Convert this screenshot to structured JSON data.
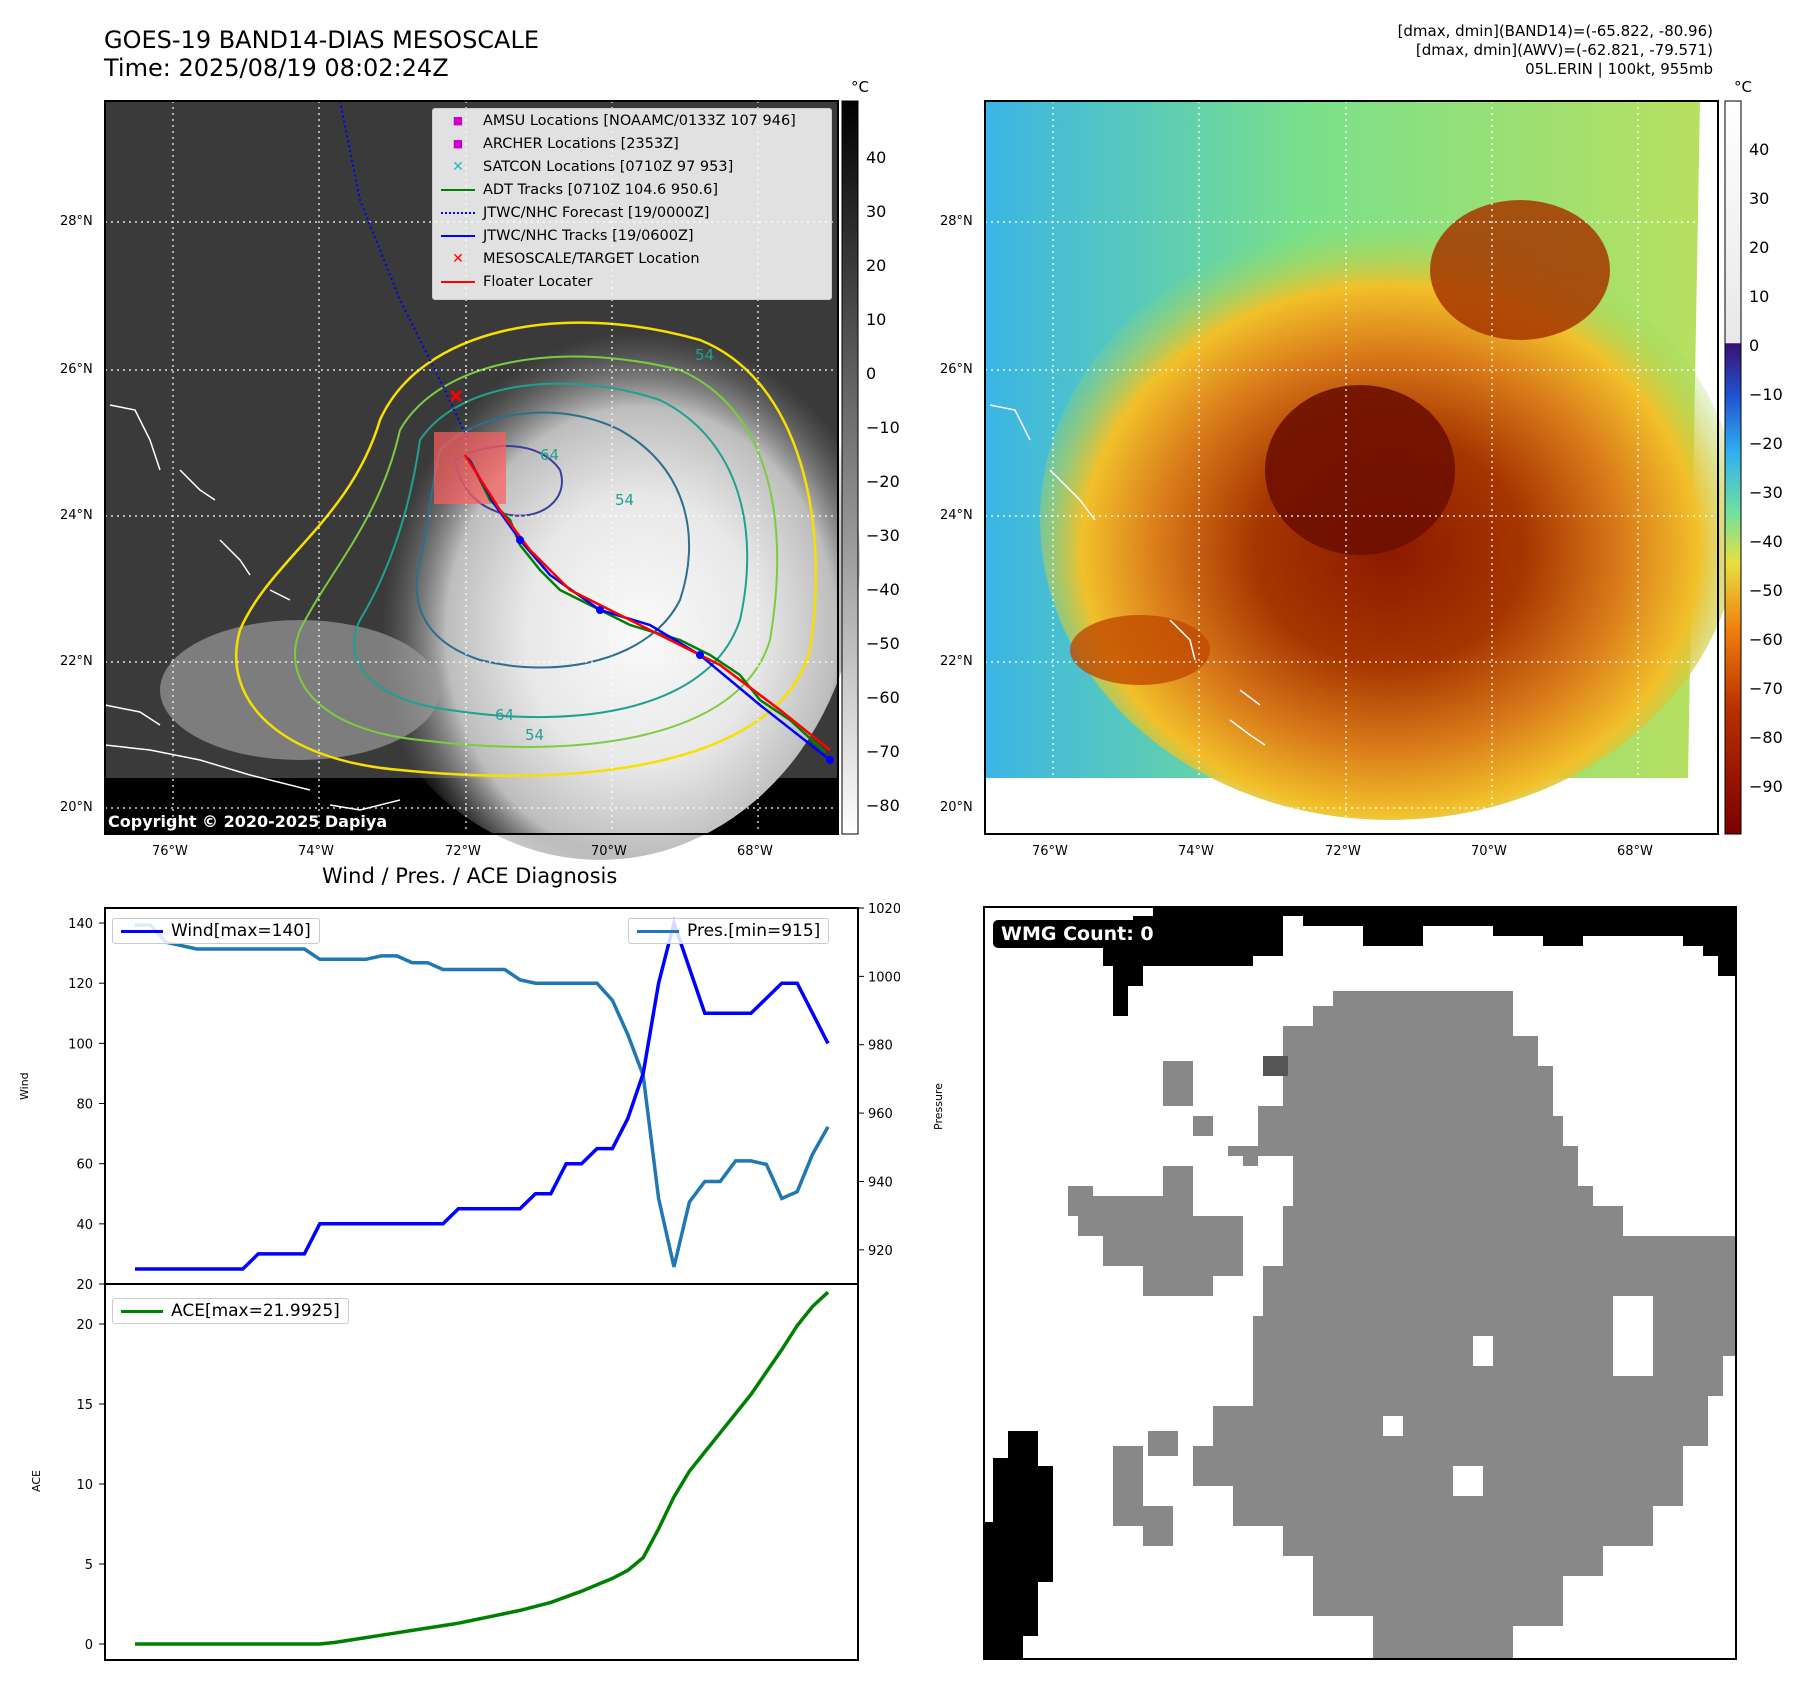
{
  "header": {
    "title_line1": "GOES-19 BAND14-DIAS MESOSCALE",
    "title_line2": "Time: 2025/08/19 08:02:24Z",
    "stats_line1": "[dmax, dmin](BAND14)=(-65.822, -80.96)",
    "stats_line2": "[dmax, dmin](AWV)=(-62.821, -79.571)",
    "stats_line3": "05L.ERIN | 100kt, 955mb"
  },
  "ir_panel": {
    "lon_labels": [
      "76°W",
      "74°W",
      "72°W",
      "70°W",
      "68°W"
    ],
    "lat_labels": [
      "28°N",
      "26°N",
      "24°N",
      "22°N",
      "20°N"
    ],
    "unit": "°C",
    "colorbar_ticks": [
      "40",
      "30",
      "20",
      "10",
      "0",
      "−10",
      "−20",
      "−30",
      "−40",
      "−50",
      "−60",
      "−70",
      "−80"
    ],
    "copyright": "Copyright © 2020-2025 Dapiya",
    "legend": [
      {
        "label": "AMSU Locations [NOAAMC/0133Z 107 946]",
        "color": "#cc00cc",
        "marker": "square"
      },
      {
        "label": "ARCHER Locations [2353Z]",
        "color": "#cc00cc",
        "marker": "square"
      },
      {
        "label": "SATCON Locations [0710Z 97 953]",
        "color": "#17becf",
        "marker": "x"
      },
      {
        "label": "ADT Tracks [0710Z 104.6 950.6]",
        "color": "#008000",
        "marker": "line"
      },
      {
        "label": "JTWC/NHC Forecast [19/0000Z]",
        "color": "#0000ff",
        "marker": "dotted"
      },
      {
        "label": "JTWC/NHC Tracks [19/0600Z]",
        "color": "#0000ff",
        "marker": "line-dot"
      },
      {
        "label": "MESOSCALE/TARGET Location",
        "color": "#ff0000",
        "marker": "x"
      },
      {
        "label": "Floater Locater",
        "color": "#ff0000",
        "marker": "line"
      }
    ],
    "contour_labels": [
      "64",
      "54",
      "54",
      "64",
      "54"
    ]
  },
  "color_panel": {
    "lon_labels": [
      "76°W",
      "74°W",
      "72°W",
      "70°W",
      "68°W"
    ],
    "lat_labels": [
      "28°N",
      "26°N",
      "24°N",
      "22°N",
      "20°N"
    ],
    "unit": "°C",
    "colorbar_ticks": [
      "40",
      "30",
      "20",
      "10",
      "0",
      "−10",
      "−20",
      "−30",
      "−40",
      "−50",
      "−60",
      "−70",
      "−80",
      "−90"
    ]
  },
  "diagnosis": {
    "title": "Wind / Pres. / ACE Diagnosis",
    "wind_ylabel": "Wind",
    "pres_ylabel": "Pressure",
    "ace_ylabel": "ACE",
    "wind_legend": "Wind[max=140]",
    "pres_legend": "Pres.[min=915]",
    "ace_legend": "ACE[max=21.9925]",
    "colors": {
      "wind": "#0000ff",
      "pres": "#1f77b4",
      "ace": "#008000"
    }
  },
  "wmg_panel": {
    "label": "WMG Count: 0"
  },
  "chart_data": [
    {
      "type": "line",
      "name": "Wind / Pressure",
      "ylim_wind": [
        20,
        145
      ],
      "ylim_pres": [
        910,
        1020
      ],
      "wind_ticks": [
        20,
        40,
        60,
        80,
        100,
        120,
        140
      ],
      "pres_ticks": [
        920,
        940,
        960,
        980,
        1000,
        1020
      ],
      "series": [
        {
          "name": "Wind[max=140]",
          "axis": "left",
          "values": [
            25,
            25,
            25,
            25,
            25,
            25,
            25,
            25,
            30,
            30,
            30,
            30,
            40,
            40,
            40,
            40,
            40,
            40,
            40,
            40,
            40,
            45,
            45,
            45,
            45,
            45,
            50,
            50,
            60,
            60,
            65,
            65,
            75,
            90,
            120,
            140,
            125,
            110,
            110,
            110,
            110,
            115,
            120,
            120,
            110,
            100
          ]
        },
        {
          "name": "Pres.[min=915]",
          "axis": "right",
          "values": [
            1015,
            1015,
            1010,
            1009,
            1008,
            1008,
            1008,
            1008,
            1008,
            1008,
            1008,
            1008,
            1005,
            1005,
            1005,
            1005,
            1006,
            1006,
            1004,
            1004,
            1002,
            1002,
            1002,
            1002,
            1002,
            999,
            998,
            998,
            998,
            998,
            998,
            993,
            983,
            971,
            935,
            915,
            934,
            940,
            940,
            946,
            946,
            945,
            935,
            937,
            948,
            956
          ]
        }
      ]
    },
    {
      "type": "line",
      "name": "ACE",
      "ylim": [
        -1,
        22.5
      ],
      "ticks": [
        0,
        5,
        10,
        15,
        20
      ],
      "series": [
        {
          "name": "ACE[max=21.9925]",
          "values": [
            0,
            0,
            0,
            0,
            0,
            0,
            0,
            0,
            0,
            0,
            0,
            0,
            0,
            0.1,
            0.25,
            0.4,
            0.55,
            0.7,
            0.85,
            1.0,
            1.15,
            1.3,
            1.5,
            1.7,
            1.9,
            2.1,
            2.35,
            2.6,
            2.95,
            3.3,
            3.7,
            4.1,
            4.6,
            5.4,
            7.2,
            9.2,
            10.8,
            12.0,
            13.2,
            14.4,
            15.6,
            17.0,
            18.4,
            19.9,
            21.1,
            21.99
          ]
        }
      ]
    }
  ]
}
